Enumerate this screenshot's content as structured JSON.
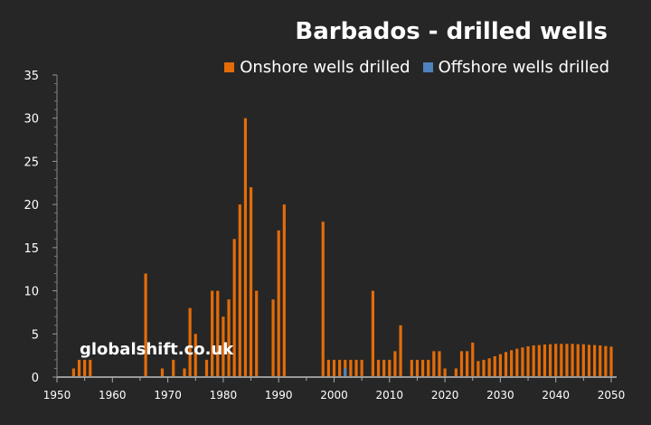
{
  "chart_data": {
    "type": "bar",
    "title": "Barbados - drilled wells",
    "xlabel": "",
    "ylabel": "",
    "xlim": [
      1950,
      2050
    ],
    "ylim": [
      0,
      35
    ],
    "yticks": [
      0,
      5,
      10,
      15,
      20,
      25,
      30,
      35
    ],
    "xticks": [
      1950,
      1960,
      1970,
      1980,
      1990,
      2000,
      2010,
      2020,
      2030,
      2040,
      2050
    ],
    "grid": false,
    "legend_position": "top-right",
    "series": [
      {
        "name": "Onshore wells drilled",
        "color": "#E36C09",
        "points": [
          [
            1953,
            1
          ],
          [
            1954,
            2
          ],
          [
            1955,
            2
          ],
          [
            1956,
            2
          ],
          [
            1966,
            12
          ],
          [
            1969,
            1
          ],
          [
            1971,
            2
          ],
          [
            1973,
            1
          ],
          [
            1974,
            8
          ],
          [
            1975,
            5
          ],
          [
            1977,
            2
          ],
          [
            1978,
            10
          ],
          [
            1979,
            10
          ],
          [
            1980,
            7
          ],
          [
            1981,
            9
          ],
          [
            1982,
            16
          ],
          [
            1983,
            20
          ],
          [
            1984,
            30
          ],
          [
            1985,
            22
          ],
          [
            1986,
            10
          ],
          [
            1989,
            9
          ],
          [
            1990,
            17
          ],
          [
            1991,
            20
          ],
          [
            1998,
            18
          ],
          [
            1999,
            2
          ],
          [
            2000,
            2
          ],
          [
            2001,
            2
          ],
          [
            2002,
            2
          ],
          [
            2003,
            2
          ],
          [
            2004,
            2
          ],
          [
            2005,
            2
          ],
          [
            2007,
            10
          ],
          [
            2008,
            2
          ],
          [
            2009,
            2
          ],
          [
            2010,
            2
          ],
          [
            2011,
            3
          ],
          [
            2012,
            6
          ],
          [
            2014,
            2
          ],
          [
            2015,
            2
          ],
          [
            2016,
            2
          ],
          [
            2017,
            2
          ],
          [
            2018,
            3
          ],
          [
            2019,
            3
          ],
          [
            2020,
            1
          ],
          [
            2022,
            1
          ],
          [
            2023,
            3
          ],
          [
            2024,
            3
          ],
          [
            2025,
            4
          ],
          [
            2026,
            1.85
          ],
          [
            2027,
            2.0
          ],
          [
            2028,
            2.17
          ],
          [
            2029,
            2.41
          ],
          [
            2030,
            2.66
          ],
          [
            2031,
            2.9
          ],
          [
            2032,
            3.11
          ],
          [
            2033,
            3.29
          ],
          [
            2034,
            3.43
          ],
          [
            2035,
            3.57
          ],
          [
            2036,
            3.67
          ],
          [
            2037,
            3.71
          ],
          [
            2038,
            3.78
          ],
          [
            2039,
            3.81
          ],
          [
            2040,
            3.85
          ],
          [
            2041,
            3.85
          ],
          [
            2042,
            3.85
          ],
          [
            2043,
            3.85
          ],
          [
            2044,
            3.81
          ],
          [
            2045,
            3.81
          ],
          [
            2046,
            3.74
          ],
          [
            2047,
            3.71
          ],
          [
            2048,
            3.67
          ],
          [
            2049,
            3.6
          ],
          [
            2050,
            3.53
          ]
        ]
      },
      {
        "name": "Offshore wells drilled",
        "color": "#4F81BD",
        "points": [
          [
            2002,
            1
          ]
        ]
      }
    ],
    "annotations": [
      "globalshift.co.uk"
    ]
  }
}
